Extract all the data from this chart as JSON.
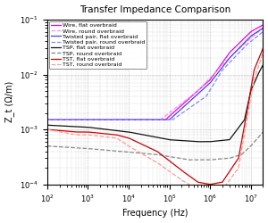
{
  "title": "Transfer Impedance Comparison",
  "xlabel": "Frequency (Hz)",
  "ylabel": "Z_t (Ω/m)",
  "xlim": [
    100,
    20000000
  ],
  "ylim": [
    0.0001,
    0.1
  ],
  "legend_entries": [
    "Wire, flat overbraid",
    "Wire, round overbraid",
    "Twisted pair, flat overbraid",
    "Twisted pair, round overbraid",
    "TSP, flat overbraid",
    "TSP, round overbraid",
    "TST, flat overbraid",
    "TST, round overbraid"
  ],
  "colors": [
    "#ee00ee",
    "#ff88ff",
    "#4444dd",
    "#8888ee",
    "#111111",
    "#888888",
    "#cc0000",
    "#ff9999"
  ],
  "linestyles": [
    "-",
    "--",
    "-",
    "--",
    "-",
    "--",
    "-",
    "--"
  ],
  "lw": 0.9
}
